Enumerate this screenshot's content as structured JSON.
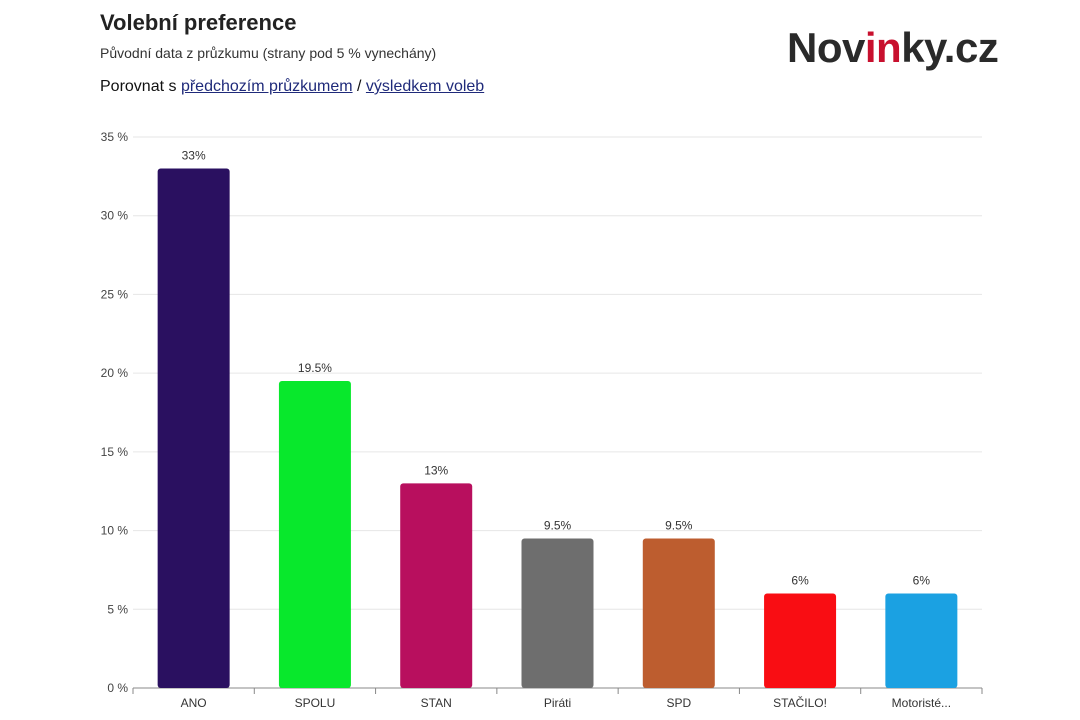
{
  "header": {
    "title": "Volební preference",
    "subtitle": "Původní data z průzkumu (strany pod 5 % vynechány)",
    "compare_prefix": "Porovnat s",
    "link_previous": "předchozím průzkumem",
    "separator": "/",
    "link_election": "výsledkem voleb"
  },
  "logo": {
    "part1": "Nov",
    "part2": "in",
    "part3": "ky.cz"
  },
  "chart_data": {
    "type": "bar",
    "categories": [
      "ANO",
      "SPOLU",
      "STAN",
      "Piráti",
      "SPD",
      "STAČILO!",
      "Motoristé..."
    ],
    "values": [
      33,
      19.5,
      13,
      9.5,
      9.5,
      6,
      6
    ],
    "value_labels": [
      "33%",
      "19.5%",
      "13%",
      "9.5%",
      "9.5%",
      "6%",
      "6%"
    ],
    "colors": [
      "#2a1060",
      "#08e82c",
      "#b80f5e",
      "#6e6e6e",
      "#bd5d2f",
      "#f90d13",
      "#1ba1e2"
    ],
    "ylim": [
      0,
      35
    ],
    "yticks": [
      0,
      5,
      10,
      15,
      20,
      25,
      30,
      35
    ],
    "ytick_labels": [
      "0 %",
      "5 %",
      "10 %",
      "15 %",
      "20 %",
      "25 %",
      "30 %",
      "35 %"
    ],
    "grid": true,
    "legend": "none"
  }
}
